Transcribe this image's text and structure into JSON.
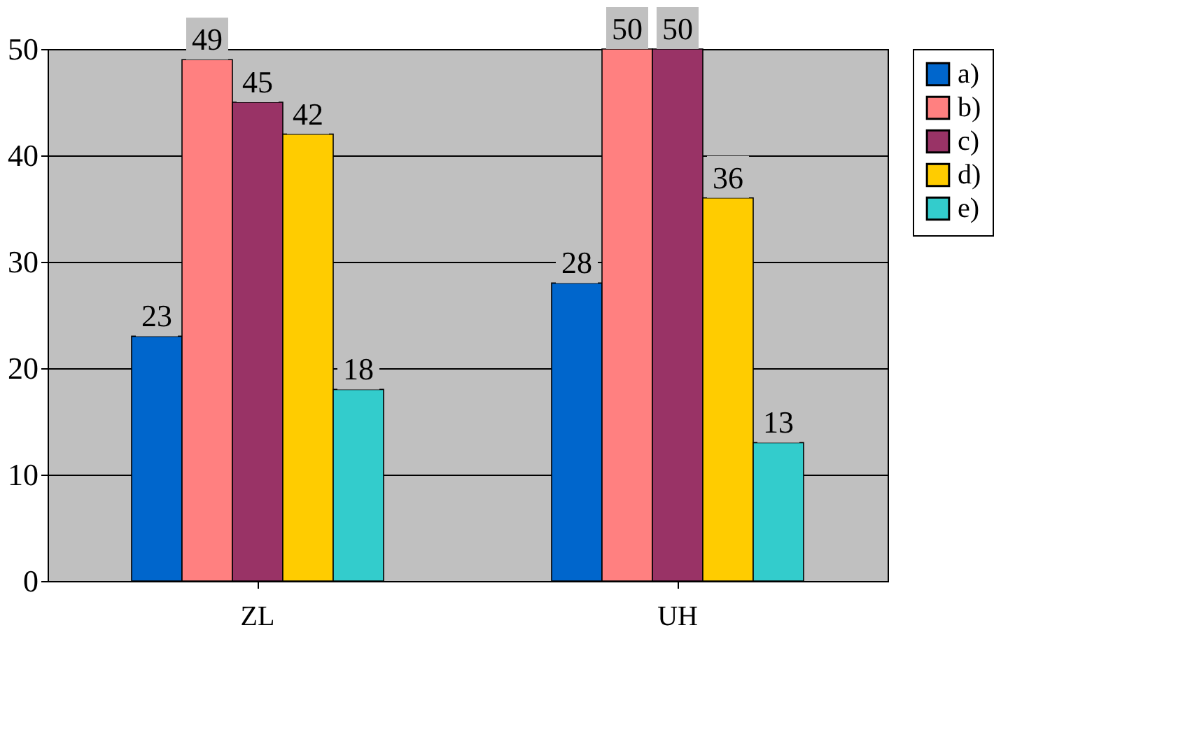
{
  "chart_data": {
    "type": "bar",
    "categories": [
      "ZL",
      "UH"
    ],
    "series": [
      {
        "name": "a)",
        "color": "#0066cc",
        "values": [
          23,
          28
        ]
      },
      {
        "name": "b)",
        "color": "#ff8080",
        "values": [
          49,
          50
        ]
      },
      {
        "name": "c)",
        "color": "#993366",
        "values": [
          45,
          50
        ]
      },
      {
        "name": "d)",
        "color": "#ffcc00",
        "values": [
          42,
          36
        ]
      },
      {
        "name": "e)",
        "color": "#33cccc",
        "values": [
          18,
          13
        ]
      }
    ],
    "ylim": [
      0,
      50
    ],
    "yticks": [
      0,
      10,
      20,
      30,
      40,
      50
    ],
    "grid": "y",
    "legend": "right",
    "data_labels": true
  }
}
